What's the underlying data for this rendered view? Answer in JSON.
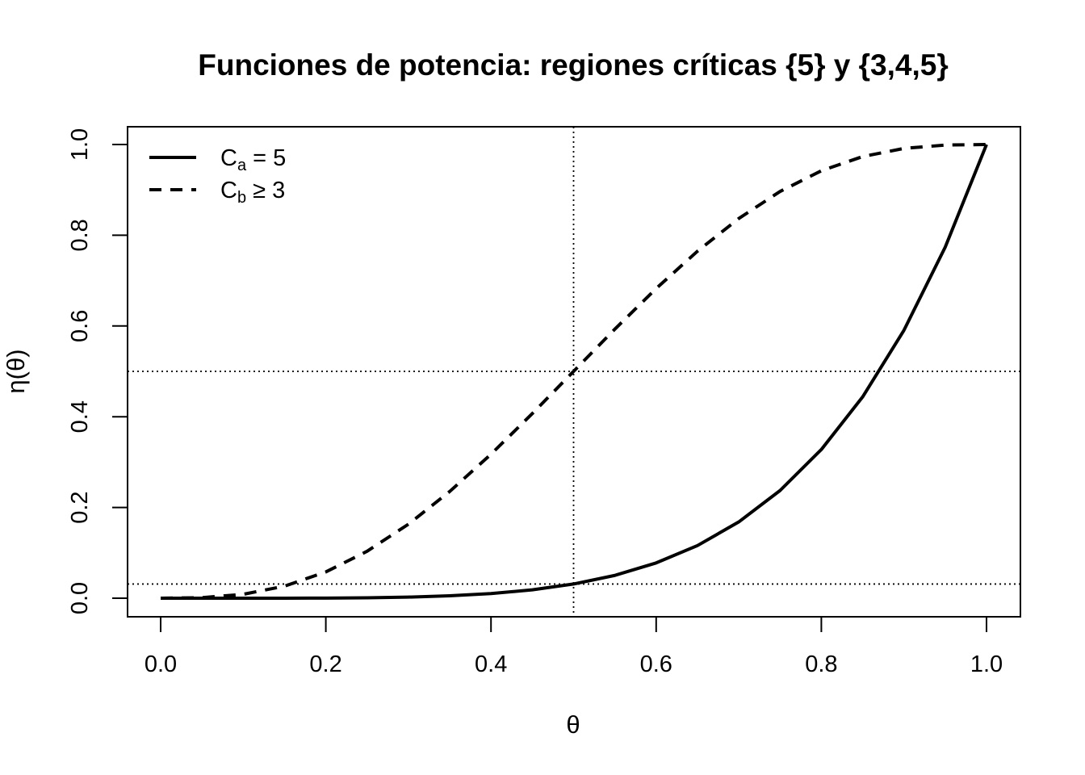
{
  "chart_data": {
    "type": "line",
    "title": "Funciones de potencia: regiones críticas {5} y {3,4,5}",
    "xlabel": "θ",
    "ylabel": "η(θ)",
    "xlim": [
      0,
      1
    ],
    "ylim": [
      0,
      1
    ],
    "x_ticks": [
      "0.0",
      "0.2",
      "0.4",
      "0.6",
      "0.8",
      "1.0"
    ],
    "y_ticks": [
      "0.0",
      "0.2",
      "0.4",
      "0.6",
      "0.8",
      "1.0"
    ],
    "grid": false,
    "legend_position": "top-left",
    "x": [
      0.0,
      0.05,
      0.1,
      0.15,
      0.2,
      0.25,
      0.3,
      0.35,
      0.4,
      0.45,
      0.5,
      0.55,
      0.6,
      0.65,
      0.7,
      0.75,
      0.8,
      0.85,
      0.9,
      0.95,
      1.0
    ],
    "series": [
      {
        "name_base": "C",
        "name_sub": "a",
        "name_rest": " = 5",
        "style": "solid",
        "color": "#000000",
        "values": [
          0.0,
          0.0,
          0.0,
          0.0001,
          0.0003,
          0.001,
          0.0024,
          0.0053,
          0.0102,
          0.0185,
          0.0313,
          0.0503,
          0.0778,
          0.116,
          0.1681,
          0.2373,
          0.3277,
          0.4437,
          0.5905,
          0.7738,
          1.0
        ]
      },
      {
        "name_base": "C",
        "name_sub": "b",
        "name_rest": " ≥ 3",
        "style": "dashed",
        "color": "#000000",
        "values": [
          0.0,
          0.0012,
          0.0086,
          0.0266,
          0.0579,
          0.1035,
          0.1631,
          0.2352,
          0.3174,
          0.4069,
          0.5,
          0.5931,
          0.6826,
          0.7648,
          0.8369,
          0.8965,
          0.9421,
          0.9734,
          0.9914,
          0.9988,
          1.0
        ]
      }
    ],
    "reference_lines": {
      "vertical_x": [
        0.5
      ],
      "horizontal_y": [
        0.5,
        0.03125
      ]
    }
  }
}
